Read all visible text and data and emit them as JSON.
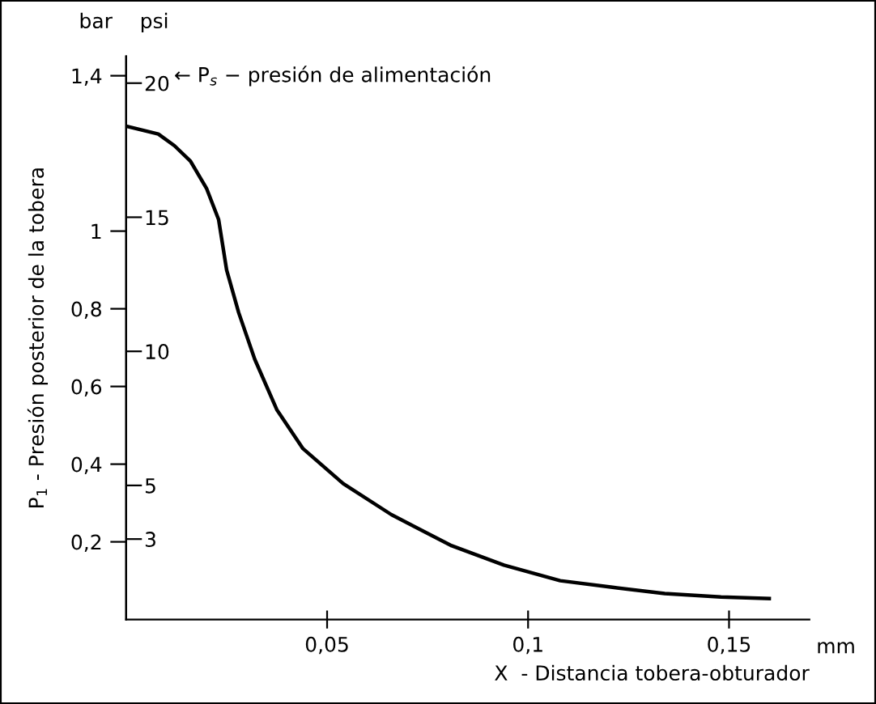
{
  "chart_data": {
    "type": "line",
    "xlabel": "X  - Distancia tobera-obturador",
    "ylabel": "P$_{1}$ - Presión posterior de la tobera",
    "annotations": [
      "bar",
      "psi",
      "mm",
      "← P$_{s}$ − presión de alimentación"
    ],
    "x": [
      0,
      0.008,
      0.012,
      0.016,
      0.02,
      0.023,
      0.025,
      0.028,
      0.032,
      0.0375,
      0.044,
      0.054,
      0.066,
      0.081,
      0.094,
      0.108,
      0.121,
      0.134,
      0.148,
      0.16
    ],
    "series": [
      {
        "color": "#000000",
        "values": [
          1.27,
          1.25,
          1.22,
          1.18,
          1.11,
          1.03,
          0.9,
          0.79,
          0.67,
          0.54,
          0.44,
          0.35,
          0.27,
          0.19,
          0.14,
          0.1,
          0.083,
          0.067,
          0.058,
          0.054
        ]
      }
    ],
    "xlim": [
      0,
      0.17
    ],
    "xticks": [
      {
        "value": 0.05,
        "label": "0,05"
      },
      {
        "value": 0.1,
        "label": "0,1"
      },
      {
        "value": 0.15,
        "label": "0,15"
      }
    ],
    "ylim": [
      0,
      1.45
    ],
    "yticks": [
      {
        "value": 0.2,
        "label": "0,2"
      },
      {
        "value": 0.4,
        "label": "0,4"
      },
      {
        "value": 0.6,
        "label": "0,6"
      },
      {
        "value": 0.8,
        "label": "0,8"
      },
      {
        "value": 1,
        "label": "1"
      },
      {
        "value": 1.4,
        "label": "1,4"
      }
    ],
    "y2lim": [
      0,
      21.0
    ],
    "y2ticks": [
      3,
      5,
      10,
      15,
      20
    ],
    "grid": false,
    "legend": false,
    "marker": "none",
    "line_style": "solid"
  }
}
